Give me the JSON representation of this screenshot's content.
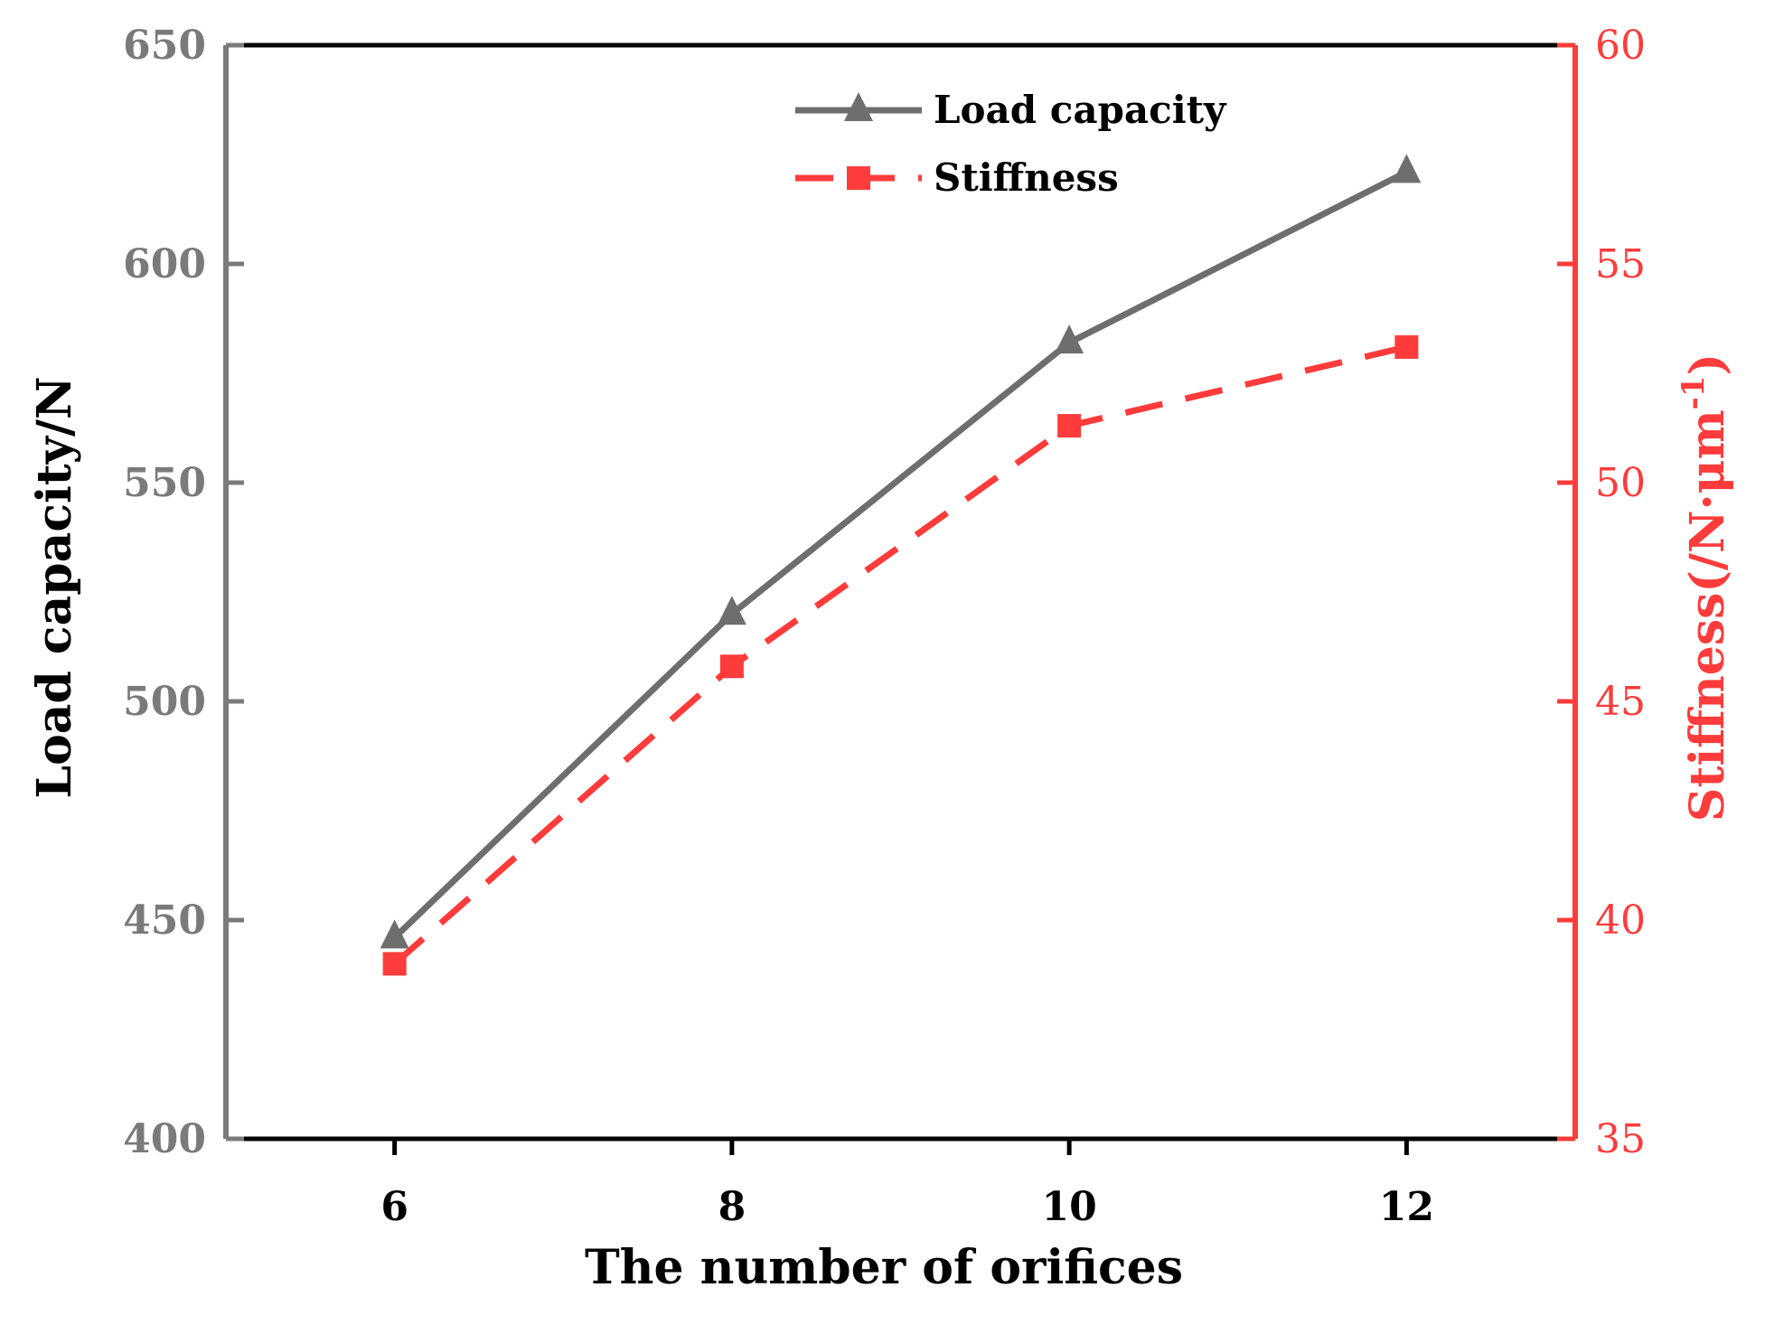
{
  "chart_data": {
    "type": "line",
    "x": [
      6,
      8,
      10,
      12
    ],
    "xlabel": "The number of orifices",
    "x_ticks": [
      "6",
      "8",
      "10",
      "12"
    ],
    "xlim": [
      5,
      13
    ],
    "y_left": {
      "label": "Load capacity/N",
      "ylim": [
        400,
        650
      ],
      "ticks": [
        "400",
        "450",
        "500",
        "550",
        "600",
        "650"
      ],
      "tick_values": [
        400,
        450,
        500,
        550,
        600,
        650
      ],
      "color": "#7a7a7a"
    },
    "y_right": {
      "label": "Stiffness(/N·μm",
      "label_sup": "-1",
      "label_close": ")",
      "ylim": [
        35,
        60
      ],
      "ticks": [
        "35",
        "40",
        "45",
        "50",
        "55",
        "60"
      ],
      "tick_values": [
        35,
        40,
        45,
        50,
        55,
        60
      ],
      "color": "#ff3b3b"
    },
    "series": [
      {
        "name": "Load capacity",
        "axis": "left",
        "values": [
          446,
          520,
          582,
          621
        ],
        "color": "#6e6e6e",
        "marker": "triangle",
        "style": "solid"
      },
      {
        "name": "Stiffness",
        "axis": "right",
        "values": [
          39.0,
          45.8,
          51.3,
          53.1
        ],
        "color": "#ff3b3b",
        "marker": "square",
        "style": "dashed"
      }
    ],
    "legend": "top-center",
    "grid": false
  }
}
